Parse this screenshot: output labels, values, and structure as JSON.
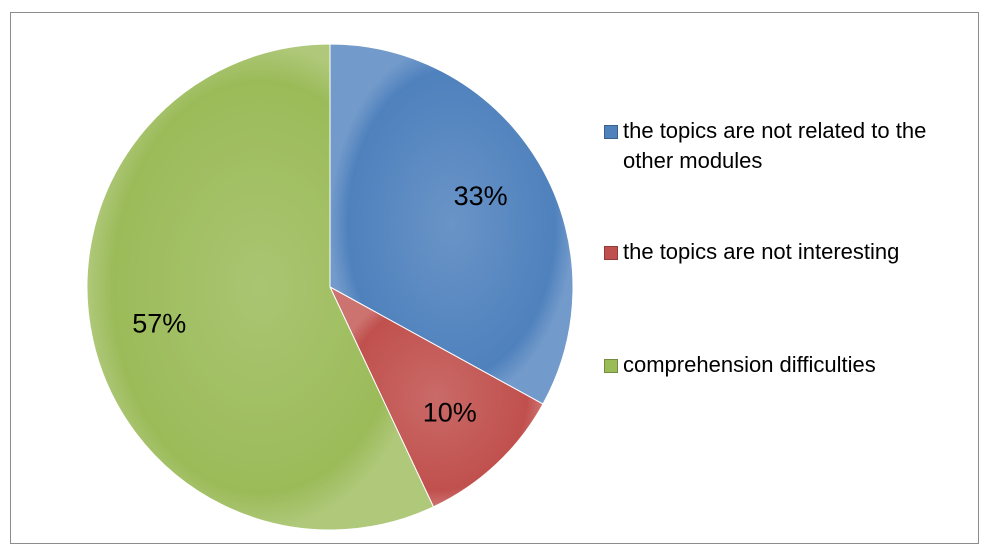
{
  "chart_data": {
    "type": "pie",
    "categories": [
      "the topics are not related to the other modules",
      "the topics are not interesting",
      "comprehension difficulties"
    ],
    "values": [
      33,
      10,
      57
    ],
    "value_labels": [
      "33%",
      "10%",
      "57%"
    ],
    "colors": [
      "#4f81bd",
      "#c0504d",
      "#9bbb59"
    ]
  }
}
